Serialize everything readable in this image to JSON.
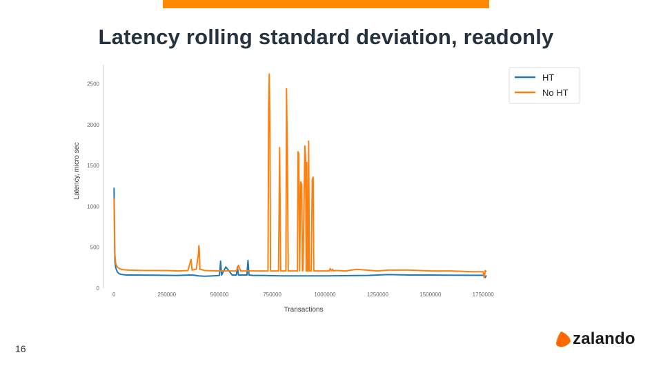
{
  "slide": {
    "title": "Latency rolling standard deviation, readonly",
    "page_number": "16",
    "logo_text": "zalando",
    "accent_color": "#ff8a00",
    "title_color": "#26333f"
  },
  "chart_data": {
    "type": "line",
    "title": "",
    "xlabel": "Transactions",
    "ylabel": "Latency, micro sec",
    "xlim": [
      -50000,
      1880000
    ],
    "ylim": [
      0,
      2700
    ],
    "xticks": [
      0,
      250000,
      500000,
      750000,
      1000000,
      1250000,
      1500000,
      1750000
    ],
    "xtick_labels": [
      "0",
      "250000",
      "500000",
      "750000",
      "1000000",
      "1250000",
      "1500000",
      "1750000"
    ],
    "yticks": [
      0,
      500,
      1000,
      1500,
      2000,
      2500
    ],
    "ytick_labels": [
      "0",
      "500",
      "1000",
      "1500",
      "2000",
      "2500"
    ],
    "legend_position": "top-right",
    "grid": false,
    "series": [
      {
        "name": "HT",
        "color": "#1f77b4",
        "x": [
          0,
          4000,
          8000,
          15000,
          25000,
          40000,
          60000,
          100000,
          200000,
          300000,
          360000,
          380000,
          400000,
          430000,
          470000,
          500000,
          505000,
          510000,
          530000,
          560000,
          580000,
          585000,
          590000,
          620000,
          630000,
          635000,
          640000,
          660000,
          700000,
          750000,
          800000,
          900000,
          1000000,
          1100000,
          1200000,
          1250000,
          1300000,
          1400000,
          1500000,
          1600000,
          1700000,
          1750000,
          1760000,
          1765000
        ],
        "y": [
          1230,
          330,
          250,
          200,
          175,
          165,
          160,
          160,
          158,
          155,
          160,
          158,
          150,
          145,
          150,
          155,
          330,
          160,
          260,
          160,
          160,
          260,
          160,
          160,
          160,
          340,
          160,
          155,
          155,
          152,
          150,
          150,
          150,
          152,
          155,
          160,
          165,
          160,
          160,
          158,
          157,
          157,
          130,
          157
        ]
      },
      {
        "name": "No HT",
        "color": "#ff7f0e",
        "x": [
          0,
          3000,
          8000,
          15000,
          25000,
          40000,
          70000,
          150000,
          250000,
          300000,
          350000,
          365000,
          370000,
          390000,
          400000,
          402000,
          405000,
          407000,
          410000,
          430000,
          500000,
          580000,
          590000,
          600000,
          700000,
          730000,
          733000,
          736000,
          739000,
          742000,
          745000,
          760000,
          780000,
          785000,
          790000,
          815000,
          818000,
          822000,
          826000,
          870000,
          872000,
          876000,
          880000,
          885000,
          890000,
          893000,
          896000,
          905000,
          908000,
          911000,
          914000,
          917000,
          920000,
          923000,
          926000,
          935000,
          940000,
          944000,
          947000,
          960000,
          1020000,
          1025000,
          1030000,
          1036000,
          1040000,
          1050000,
          1100000,
          1150000,
          1250000,
          1300000,
          1400000,
          1500000,
          1600000,
          1700000,
          1750000,
          1755000,
          1760000,
          1765000
        ],
        "y": [
          1100,
          450,
          300,
          260,
          240,
          225,
          220,
          215,
          215,
          210,
          215,
          350,
          220,
          230,
          420,
          520,
          440,
          230,
          230,
          215,
          210,
          210,
          280,
          210,
          210,
          210,
          2220,
          2620,
          2050,
          210,
          210,
          210,
          210,
          1720,
          210,
          210,
          2440,
          1530,
          210,
          210,
          1670,
          1640,
          210,
          1300,
          1270,
          210,
          220,
          1740,
          1600,
          210,
          1540,
          210,
          210,
          1800,
          210,
          210,
          1330,
          1360,
          210,
          210,
          210,
          240,
          210,
          230,
          210,
          215,
          210,
          230,
          210,
          220,
          220,
          210,
          210,
          200,
          200,
          130,
          215,
          200
        ]
      }
    ]
  }
}
